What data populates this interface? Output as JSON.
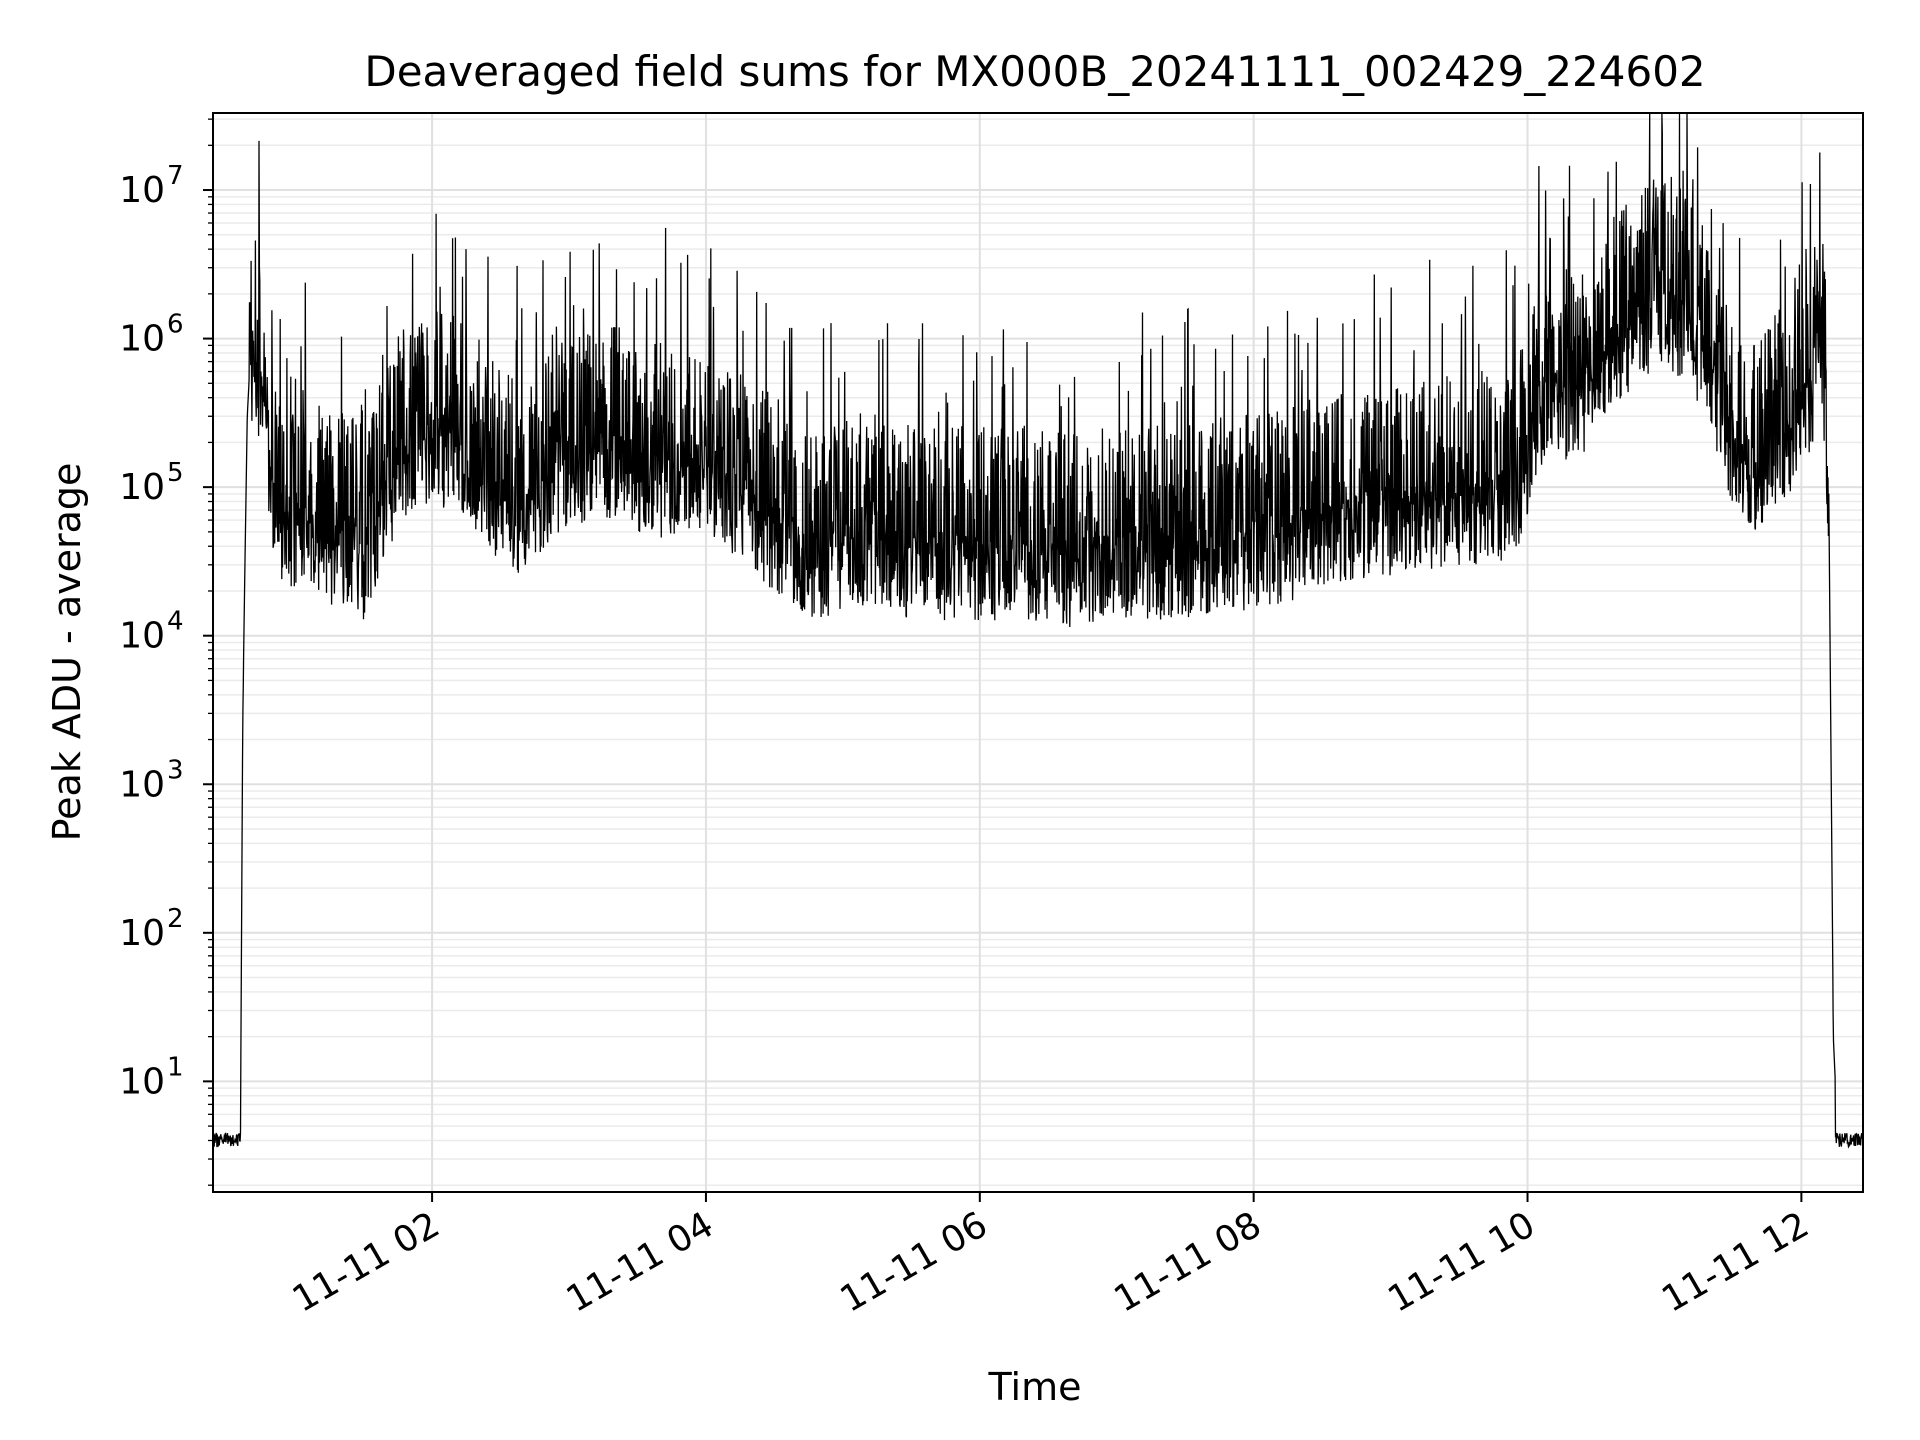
{
  "chart_data": {
    "type": "line",
    "title": "Deaveraged field sums for MX000B_20241111_002429_224602",
    "xlabel": "Time",
    "ylabel": "Peak ADU - average",
    "y_scale": "log",
    "xlim": [
      "2024-11-11 00:24",
      "2024-11-11 12:27"
    ],
    "ylim": [
      1.8,
      33000000
    ],
    "grid": true,
    "legend": "none",
    "line_color": "#000000",
    "x_ticks": [
      {
        "value": "2024-11-11 02:00",
        "label": "11-11 02"
      },
      {
        "value": "2024-11-11 04:00",
        "label": "11-11 04"
      },
      {
        "value": "2024-11-11 06:00",
        "label": "11-11 06"
      },
      {
        "value": "2024-11-11 08:00",
        "label": "11-11 08"
      },
      {
        "value": "2024-11-11 10:00",
        "label": "11-11 10"
      },
      {
        "value": "2024-11-11 12:00",
        "label": "11-11 12"
      }
    ],
    "y_ticks": [
      {
        "value": 10,
        "base": "10",
        "exp": "1"
      },
      {
        "value": 100,
        "base": "10",
        "exp": "2"
      },
      {
        "value": 1000,
        "base": "10",
        "exp": "3"
      },
      {
        "value": 10000,
        "base": "10",
        "exp": "4"
      },
      {
        "value": 100000,
        "base": "10",
        "exp": "5"
      },
      {
        "value": 1000000,
        "base": "10",
        "exp": "6"
      },
      {
        "value": 10000000,
        "base": "10",
        "exp": "7"
      }
    ],
    "series": [
      {
        "x": [
          "2024-11-11 00:24",
          "2024-11-11 00:26",
          "2024-11-11 00:28",
          "2024-11-11 00:34",
          "2024-11-11 00:36",
          "2024-11-11 00:37",
          "2024-11-11 00:38",
          "2024-11-11 00:39",
          "2024-11-11 00:40",
          "2024-11-11 00:41",
          "2024-11-11 00:42",
          "2024-11-11 00:44",
          "2024-11-11 00:46",
          "2024-11-11 00:48",
          "2024-11-11 00:50",
          "2024-11-11 00:52",
          "2024-11-11 00:54",
          "2024-11-11 00:56",
          "2024-11-11 00:58",
          "2024-11-11 01:02",
          "2024-11-11 01:06",
          "2024-11-11 01:12",
          "2024-11-11 01:18",
          "2024-11-11 01:24",
          "2024-11-11 01:30",
          "2024-11-11 01:36",
          "2024-11-11 01:42",
          "2024-11-11 01:48",
          "2024-11-11 01:54",
          "2024-11-11 02:00",
          "2024-11-11 02:10",
          "2024-11-11 02:20",
          "2024-11-11 02:30",
          "2024-11-11 02:40",
          "2024-11-11 02:50",
          "2024-11-11 03:00",
          "2024-11-11 03:10",
          "2024-11-11 03:20",
          "2024-11-11 03:30",
          "2024-11-11 03:40",
          "2024-11-11 03:50",
          "2024-11-11 04:00",
          "2024-11-11 04:10",
          "2024-11-11 04:20",
          "2024-11-11 04:30",
          "2024-11-11 04:40",
          "2024-11-11 04:50",
          "2024-11-11 05:00",
          "2024-11-11 05:15",
          "2024-11-11 05:30",
          "2024-11-11 05:45",
          "2024-11-11 06:00",
          "2024-11-11 06:20",
          "2024-11-11 06:40",
          "2024-11-11 07:00",
          "2024-11-11 07:20",
          "2024-11-11 07:40",
          "2024-11-11 08:00",
          "2024-11-11 08:20",
          "2024-11-11 08:40",
          "2024-11-11 09:00",
          "2024-11-11 09:20",
          "2024-11-11 09:40",
          "2024-11-11 09:55",
          "2024-11-11 10:05",
          "2024-11-11 10:10",
          "2024-11-11 10:15",
          "2024-11-11 10:20",
          "2024-11-11 10:30",
          "2024-11-11 10:40",
          "2024-11-11 10:50",
          "2024-11-11 11:00",
          "2024-11-11 11:10",
          "2024-11-11 11:20",
          "2024-11-11 11:25",
          "2024-11-11 11:30",
          "2024-11-11 11:40",
          "2024-11-11 11:50",
          "2024-11-11 12:00",
          "2024-11-11 12:05",
          "2024-11-11 12:08",
          "2024-11-11 12:10",
          "2024-11-11 12:12",
          "2024-11-11 12:14",
          "2024-11-11 12:16",
          "2024-11-11 12:18",
          "2024-11-11 12:27"
        ],
        "y": [
          4,
          4,
          4,
          4,
          4,
          2500,
          30000,
          300000,
          600000,
          900000,
          1000000,
          800000,
          600000,
          300000,
          150000,
          100000,
          80000,
          90000,
          70000,
          90000,
          80000,
          70000,
          60000,
          60000,
          50000,
          90000,
          150000,
          250000,
          300000,
          300000,
          280000,
          200000,
          120000,
          100000,
          150000,
          200000,
          220000,
          250000,
          200000,
          180000,
          200000,
          200000,
          150000,
          100000,
          80000,
          60000,
          50000,
          60000,
          60000,
          50000,
          50000,
          50000,
          50000,
          45000,
          50000,
          50000,
          55000,
          60000,
          70000,
          90000,
          100000,
          110000,
          120000,
          130000,
          500000,
          700000,
          600000,
          600000,
          800000,
          1500000,
          2000000,
          2500000,
          2000000,
          1000000,
          500000,
          300000,
          200000,
          300000,
          450000,
          800000,
          1500000,
          800000,
          100000,
          20,
          4,
          4,
          4
        ]
      }
    ]
  }
}
